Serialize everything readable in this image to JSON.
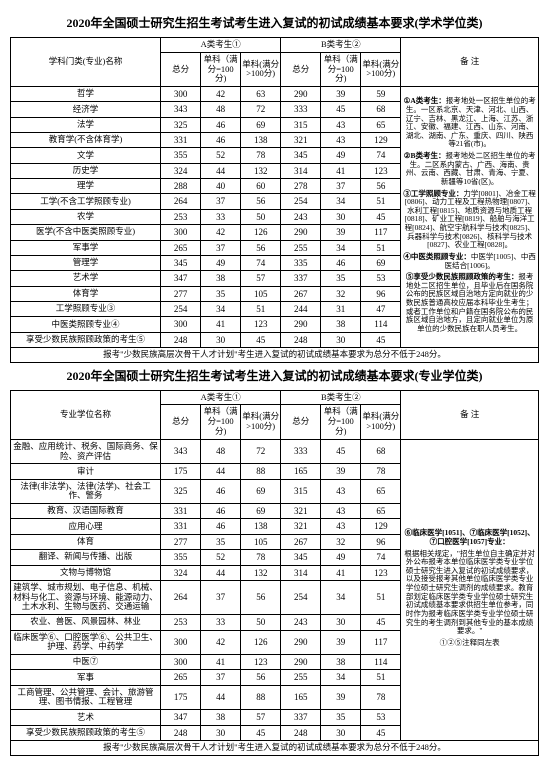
{
  "table1": {
    "title": "2020年全国硕士研究生招生考试考生进入复试的初试成绩基本要求(学术学位类)",
    "header": {
      "name": "学科门类(专业)名称",
      "groupA": "A类考生①",
      "groupB": "B类考生②",
      "notes": "备  注",
      "total": "总分",
      "single100": "单科（满分=100分)",
      "singleGt100": "单科(满分>100分)"
    },
    "rows": [
      {
        "name": "哲学",
        "a": [
          300,
          42,
          63
        ],
        "b": [
          290,
          39,
          59
        ]
      },
      {
        "name": "经济学",
        "a": [
          343,
          48,
          72
        ],
        "b": [
          333,
          45,
          68
        ]
      },
      {
        "name": "法学",
        "a": [
          325,
          46,
          69
        ],
        "b": [
          315,
          43,
          65
        ]
      },
      {
        "name": "教育学(不含体育学)",
        "a": [
          331,
          46,
          138
        ],
        "b": [
          321,
          43,
          129
        ]
      },
      {
        "name": "文学",
        "a": [
          355,
          52,
          78
        ],
        "b": [
          345,
          49,
          74
        ]
      },
      {
        "name": "历史学",
        "a": [
          324,
          44,
          132
        ],
        "b": [
          314,
          41,
          123
        ]
      },
      {
        "name": "理学",
        "a": [
          288,
          40,
          60
        ],
        "b": [
          278,
          37,
          56
        ]
      },
      {
        "name": "工学(不含工学照顾专业)",
        "a": [
          264,
          37,
          56
        ],
        "b": [
          254,
          34,
          51
        ]
      },
      {
        "name": "农学",
        "a": [
          253,
          33,
          50
        ],
        "b": [
          243,
          30,
          45
        ]
      },
      {
        "name": "医学(不含中医类照顾专业)",
        "a": [
          300,
          42,
          126
        ],
        "b": [
          290,
          39,
          117
        ]
      },
      {
        "name": "军事学",
        "a": [
          265,
          37,
          56
        ],
        "b": [
          255,
          34,
          51
        ]
      },
      {
        "name": "管理学",
        "a": [
          345,
          49,
          74
        ],
        "b": [
          335,
          46,
          69
        ]
      },
      {
        "name": "艺术学",
        "a": [
          347,
          38,
          57
        ],
        "b": [
          337,
          35,
          53
        ]
      },
      {
        "name": "体育学",
        "a": [
          277,
          35,
          105
        ],
        "b": [
          267,
          32,
          96
        ]
      },
      {
        "name": "工学照顾专业③",
        "a": [
          254,
          34,
          51
        ],
        "b": [
          244,
          31,
          47
        ]
      },
      {
        "name": "中医类照顾专业④",
        "a": [
          300,
          41,
          123
        ],
        "b": [
          290,
          38,
          114
        ]
      },
      {
        "name": "享受少数民族照顾政策的考生⑤",
        "a": [
          248,
          30,
          45
        ],
        "b": [
          248,
          30,
          45
        ]
      }
    ],
    "footnote": "报考\"少数民族高层次骨干人才计划\"考生进入复试的初试成绩基本要求为总分不低于248分。",
    "notes": [
      {
        "h": "①A类考生：",
        "t": "报考地处一区招生单位的考生。一区系北京、天津、河北、山西、辽宁、吉林、黑龙江、上海、江苏、浙江、安徽、福建、江西、山东、河南、湖北、湖南、广东、重庆、四川、陕西等21省(市)。"
      },
      {
        "h": "②B类考生：",
        "t": "报考地处二区招生单位的考生。二区系内蒙古、广西、海南、贵州、云南、西藏、甘肃、青海、宁夏、新疆等10省(区)。"
      },
      {
        "h": "③工学照顾专业：",
        "t": "力学[0801]、冶金工程[0806]、动力工程及工程热物理[0807]、水利工程[0815]、地质资源与地质工程[0818]、矿业工程[0819]、船舶与海洋工程[0824]、航空宇航科学与技术[0825]、兵器科学与技术[0826]、核科学与技术[0827]、农业工程[0828]。"
      },
      {
        "h": "④中医类照顾专业：",
        "t": "中医学[1005]、中西医结合[1006]。"
      },
      {
        "h": "⑤享受少数民族照顾政策的考生：",
        "t": "报考地处二区招生单位，且毕业后在国务院公布的民族区域自治地方定向就业的少数民族普通高校应届本科毕业生考生；或者工作单位和户籍在国务院公布的民族区域自治地方，且定向就业单位为原单位的少数民族在职人员考生。"
      }
    ]
  },
  "table2": {
    "title": "2020年全国硕士研究生招生考试考生进入复试的初试成绩基本要求(专业学位类)",
    "header": {
      "name": "专业学位名称",
      "groupA": "A类考生①",
      "groupB": "B类考生②",
      "notes": "备  注",
      "total": "总分",
      "single100": "单科（满分=100分)",
      "singleGt100": "单科(满分>100分)"
    },
    "rows": [
      {
        "name": "金融、应用统计、税务、国际商务、保险、资产评估",
        "a": [
          343,
          48,
          72
        ],
        "b": [
          333,
          45,
          68
        ]
      },
      {
        "name": "审计",
        "a": [
          175,
          44,
          88
        ],
        "b": [
          165,
          39,
          78
        ]
      },
      {
        "name": "法律(非法学)、法律(法学)、社会工作、警务",
        "a": [
          325,
          46,
          69
        ],
        "b": [
          315,
          43,
          65
        ]
      },
      {
        "name": "教育、汉语国际教育",
        "a": [
          331,
          46,
          69
        ],
        "b": [
          321,
          43,
          65
        ]
      },
      {
        "name": "应用心理",
        "a": [
          331,
          46,
          138
        ],
        "b": [
          321,
          43,
          129
        ]
      },
      {
        "name": "体育",
        "a": [
          277,
          35,
          105
        ],
        "b": [
          267,
          32,
          96
        ]
      },
      {
        "name": "翻译、新闻与传播、出版",
        "a": [
          355,
          52,
          78
        ],
        "b": [
          345,
          49,
          74
        ]
      },
      {
        "name": "文物与博物馆",
        "a": [
          324,
          44,
          132
        ],
        "b": [
          314,
          41,
          123
        ]
      },
      {
        "name": "建筑学、城市规划、电子信息、机械、材料与化工、资源与环境、能源动力、土木水利、生物与医药、交通运输",
        "a": [
          264,
          37,
          56
        ],
        "b": [
          254,
          34,
          51
        ]
      },
      {
        "name": "农业、兽医、风景园林、林业",
        "a": [
          253,
          33,
          50
        ],
        "b": [
          243,
          30,
          45
        ]
      },
      {
        "name": "临床医学⑥、口腔医学⑥、公共卫生、护理、药学、中药学",
        "a": [
          300,
          42,
          126
        ],
        "b": [
          290,
          39,
          117
        ]
      },
      {
        "name": "中医⑦",
        "a": [
          300,
          41,
          123
        ],
        "b": [
          290,
          38,
          114
        ]
      },
      {
        "name": "军事",
        "a": [
          265,
          37,
          56
        ],
        "b": [
          255,
          34,
          51
        ]
      },
      {
        "name": "工商管理、公共管理、会计、旅游管理、图书情报、工程管理",
        "a": [
          175,
          44,
          88
        ],
        "b": [
          165,
          39,
          78
        ]
      },
      {
        "name": "艺术",
        "a": [
          347,
          38,
          57
        ],
        "b": [
          337,
          35,
          53
        ]
      },
      {
        "name": "享受少数民族照顾政策的考生⑤",
        "a": [
          248,
          30,
          45
        ],
        "b": [
          248,
          30,
          45
        ]
      }
    ],
    "footnote": "报考\"少数民族高层次骨干人才计划\"考生进入复试的初试成绩基本要求为总分不低于248分。",
    "notes": [
      {
        "h": "⑥临床医学[1051]、⑦临床医学[1052]、⑦口腔医学[1057]专业：",
        "t": ""
      },
      {
        "h": "",
        "t": "根据相关规定，\"招生单位自主确定并对外公布报考本单位临床医学类专业学位硕士研究生进入复试的初试成绩要求，以及接受报考其他单位临床医学类专业学位硕士研究生调剂的成绩要求。教育部划定临床医学类专业学位硕士研究生初试成绩基本要求供招生单位参考，同时作为报考临床医学类专业学位硕士研究生的考生调剂到其他专业的基本成绩要求。\""
      },
      {
        "h": "",
        "t": "①②⑤注释同左表"
      }
    ]
  }
}
